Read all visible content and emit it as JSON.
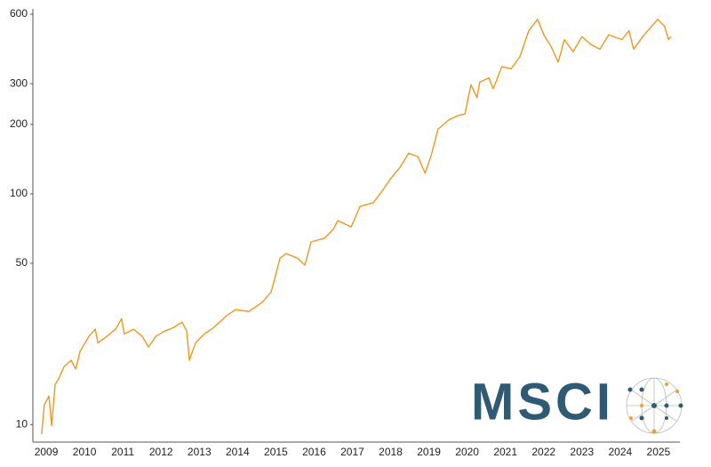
{
  "chart_data": {
    "type": "line",
    "log_y": true,
    "grid": false,
    "xlim": [
      2008.65,
      2025.56
    ],
    "xticks": [
      2009,
      2010,
      2011,
      2012,
      2013,
      2014,
      2015,
      2016,
      2017,
      2018,
      2019,
      2020,
      2021,
      2022,
      2023,
      2024,
      2025
    ],
    "ylim": [
      8.4,
      633
    ],
    "yticks": [
      10,
      50,
      100,
      200,
      300,
      600
    ],
    "x": [
      2008.88,
      2008.95,
      2009.07,
      2009.14,
      2009.23,
      2009.33,
      2009.46,
      2009.65,
      2009.77,
      2009.88,
      2010.11,
      2010.28,
      2010.35,
      2010.58,
      2010.81,
      2010.97,
      2011.04,
      2011.28,
      2011.51,
      2011.67,
      2011.86,
      2012.09,
      2012.32,
      2012.55,
      2012.67,
      2012.74,
      2012.9,
      2013.13,
      2013.37,
      2013.71,
      2013.95,
      2014.29,
      2014.64,
      2014.88,
      2015.11,
      2015.27,
      2015.57,
      2015.76,
      2015.92,
      2016.27,
      2016.5,
      2016.62,
      2016.97,
      2017.2,
      2017.55,
      2017.78,
      2018.01,
      2018.24,
      2018.47,
      2018.71,
      2018.9,
      2019.06,
      2019.24,
      2019.52,
      2019.75,
      2019.94,
      2020.1,
      2020.26,
      2020.33,
      2020.57,
      2020.68,
      2020.91,
      2021.15,
      2021.38,
      2021.61,
      2021.84,
      2022.01,
      2022.19,
      2022.38,
      2022.54,
      2022.77,
      2023.0,
      2023.24,
      2023.47,
      2023.7,
      2024.05,
      2024.23,
      2024.35,
      2024.63,
      2024.98,
      2025.16,
      2025.26,
      2025.33
    ],
    "series": [
      {
        "color": "#f0961e",
        "values": [
          9.1,
          12.2,
          13.3,
          9.9,
          14.9,
          15.9,
          17.8,
          19.0,
          17.4,
          20.7,
          24.1,
          25.9,
          22.6,
          24.1,
          25.9,
          28.8,
          24.7,
          25.9,
          24.1,
          21.7,
          24.1,
          25.4,
          26.3,
          27.8,
          25.4,
          19.0,
          22.6,
          24.7,
          26.3,
          29.6,
          31.5,
          30.9,
          33.8,
          37.6,
          52.6,
          55.1,
          52.6,
          49.1,
          61.9,
          64.2,
          70.2,
          76.6,
          71.9,
          88.2,
          91.6,
          103,
          117,
          130,
          150,
          145,
          123,
          147,
          191,
          209,
          218,
          222,
          297,
          261,
          305,
          318,
          285,
          356,
          348,
          393,
          509,
          570,
          486,
          436,
          372,
          466,
          413,
          480,
          443,
          424,
          489,
          466,
          509,
          424,
          489,
          570,
          532,
          466,
          480
        ]
      }
    ]
  },
  "logo": {
    "text": "MSCI"
  }
}
